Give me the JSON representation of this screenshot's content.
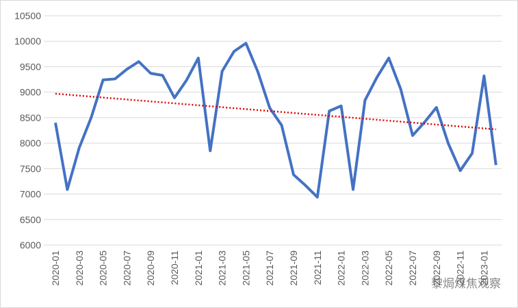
{
  "chart_data": {
    "type": "line",
    "categories": [
      "2020-01",
      null,
      "2020-03",
      null,
      "2020-05",
      null,
      "2020-07",
      null,
      "2020-09",
      null,
      "2020-11",
      null,
      "2021-01",
      null,
      "2021-03",
      null,
      "2021-05",
      null,
      "2021-07",
      null,
      "2021-09",
      null,
      "2021-11",
      null,
      "2022-01",
      null,
      "2022-03",
      null,
      "2022-05",
      null,
      "2022-07",
      null,
      "2022-09",
      null,
      "2022-11",
      null,
      "2023-01",
      null
    ],
    "series": [
      {
        "color": "#4472c4",
        "values": [
          8400,
          7090,
          7910,
          8500,
          9240,
          9260,
          9450,
          9600,
          9370,
          9330,
          8890,
          9230,
          9670,
          7850,
          9410,
          9800,
          9960,
          9400,
          8690,
          8350,
          7380,
          7170,
          6940,
          8630,
          8730,
          7090,
          8840,
          9290,
          9670,
          9060,
          8150,
          8410,
          8700,
          7990,
          7460,
          7800,
          9320,
          7570
        ]
      }
    ],
    "trendline": {
      "color": "#e00000",
      "start": 8970,
      "end": 8270
    },
    "ylim": [
      6000,
      10500
    ],
    "yticks": [
      6000,
      6500,
      7000,
      7500,
      8000,
      8500,
      9000,
      9500,
      10000,
      10500
    ],
    "grid": true,
    "watermark": "黎焗煤焦观察"
  }
}
